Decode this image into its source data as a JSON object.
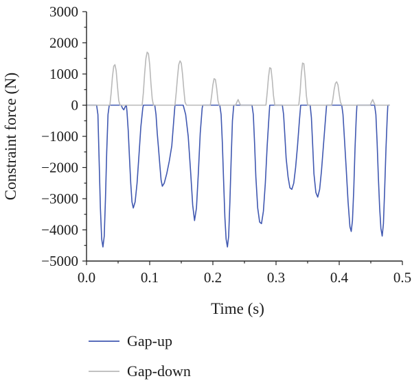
{
  "chart_data": {
    "type": "line",
    "title": "",
    "xlabel": "Time (s)",
    "ylabel": "Constraint force (N)",
    "xlim": [
      0.0,
      0.5
    ],
    "ylim": [
      -5000,
      3000
    ],
    "x_ticks": [
      0.0,
      0.1,
      0.2,
      0.3,
      0.4,
      0.5
    ],
    "x_tick_labels": [
      "0.0",
      "0.1",
      "0.2",
      "0.3",
      "0.4",
      "0.5"
    ],
    "y_ticks": [
      3000,
      2000,
      1000,
      0,
      -1000,
      -2000,
      -3000,
      -4000,
      -5000
    ],
    "y_tick_labels": [
      "3000",
      "2000",
      "1000",
      "0",
      "−1000",
      "−2000",
      "−3000",
      "−4000",
      "−5000"
    ],
    "grid": false,
    "legend_position": "bottom",
    "series": [
      {
        "name": "Gap-up",
        "color": "#3f57b0",
        "points": [
          [
            0.0,
            0
          ],
          [
            0.016,
            0
          ],
          [
            0.018,
            -300
          ],
          [
            0.02,
            -1800
          ],
          [
            0.022,
            -3300
          ],
          [
            0.024,
            -4300
          ],
          [
            0.026,
            -4550
          ],
          [
            0.028,
            -4200
          ],
          [
            0.03,
            -3000
          ],
          [
            0.032,
            -1500
          ],
          [
            0.034,
            -300
          ],
          [
            0.036,
            0
          ],
          [
            0.055,
            0
          ],
          [
            0.057,
            -100
          ],
          [
            0.059,
            -150
          ],
          [
            0.061,
            -60
          ],
          [
            0.063,
            0
          ],
          [
            0.064,
            -200
          ],
          [
            0.066,
            -800
          ],
          [
            0.068,
            -1700
          ],
          [
            0.07,
            -2500
          ],
          [
            0.072,
            -3100
          ],
          [
            0.074,
            -3300
          ],
          [
            0.077,
            -3100
          ],
          [
            0.08,
            -2500
          ],
          [
            0.083,
            -1600
          ],
          [
            0.086,
            -700
          ],
          [
            0.089,
            -100
          ],
          [
            0.09,
            0
          ],
          [
            0.108,
            0
          ],
          [
            0.11,
            -300
          ],
          [
            0.112,
            -900
          ],
          [
            0.114,
            -1400
          ],
          [
            0.116,
            -1900
          ],
          [
            0.118,
            -2400
          ],
          [
            0.12,
            -2600
          ],
          [
            0.123,
            -2500
          ],
          [
            0.127,
            -2200
          ],
          [
            0.131,
            -1800
          ],
          [
            0.135,
            -1300
          ],
          [
            0.138,
            -500
          ],
          [
            0.14,
            0
          ],
          [
            0.153,
            0
          ],
          [
            0.157,
            -300
          ],
          [
            0.161,
            -1000
          ],
          [
            0.165,
            -2200
          ],
          [
            0.168,
            -3200
          ],
          [
            0.171,
            -3700
          ],
          [
            0.174,
            -3300
          ],
          [
            0.177,
            -2200
          ],
          [
            0.18,
            -900
          ],
          [
            0.183,
            -100
          ],
          [
            0.184,
            0
          ],
          [
            0.211,
            0
          ],
          [
            0.213,
            -300
          ],
          [
            0.215,
            -1200
          ],
          [
            0.217,
            -2400
          ],
          [
            0.219,
            -3600
          ],
          [
            0.221,
            -4300
          ],
          [
            0.223,
            -4550
          ],
          [
            0.225,
            -4200
          ],
          [
            0.227,
            -3100
          ],
          [
            0.229,
            -1700
          ],
          [
            0.231,
            -500
          ],
          [
            0.233,
            0
          ],
          [
            0.262,
            0
          ],
          [
            0.264,
            -300
          ],
          [
            0.266,
            -1200
          ],
          [
            0.268,
            -2300
          ],
          [
            0.271,
            -3300
          ],
          [
            0.274,
            -3750
          ],
          [
            0.277,
            -3800
          ],
          [
            0.28,
            -3400
          ],
          [
            0.283,
            -2500
          ],
          [
            0.286,
            -1300
          ],
          [
            0.289,
            -300
          ],
          [
            0.29,
            0
          ],
          [
            0.31,
            0
          ],
          [
            0.312,
            -300
          ],
          [
            0.314,
            -1000
          ],
          [
            0.316,
            -1700
          ],
          [
            0.319,
            -2300
          ],
          [
            0.322,
            -2650
          ],
          [
            0.325,
            -2700
          ],
          [
            0.328,
            -2500
          ],
          [
            0.331,
            -2000
          ],
          [
            0.334,
            -1300
          ],
          [
            0.337,
            -500
          ],
          [
            0.339,
            0
          ],
          [
            0.354,
            0
          ],
          [
            0.356,
            -400
          ],
          [
            0.358,
            -1300
          ],
          [
            0.36,
            -2200
          ],
          [
            0.363,
            -2800
          ],
          [
            0.366,
            -2950
          ],
          [
            0.369,
            -2700
          ],
          [
            0.372,
            -2100
          ],
          [
            0.375,
            -1300
          ],
          [
            0.378,
            -500
          ],
          [
            0.38,
            0
          ],
          [
            0.404,
            0
          ],
          [
            0.406,
            -300
          ],
          [
            0.408,
            -1000
          ],
          [
            0.411,
            -2000
          ],
          [
            0.414,
            -3100
          ],
          [
            0.417,
            -3900
          ],
          [
            0.419,
            -4050
          ],
          [
            0.421,
            -3700
          ],
          [
            0.423,
            -2700
          ],
          [
            0.425,
            -1400
          ],
          [
            0.427,
            -400
          ],
          [
            0.428,
            0
          ],
          [
            0.456,
            0
          ],
          [
            0.458,
            -300
          ],
          [
            0.46,
            -1200
          ],
          [
            0.462,
            -2300
          ],
          [
            0.464,
            -3300
          ],
          [
            0.466,
            -3950
          ],
          [
            0.468,
            -4200
          ],
          [
            0.47,
            -3800
          ],
          [
            0.472,
            -2700
          ],
          [
            0.474,
            -1400
          ],
          [
            0.476,
            -400
          ],
          [
            0.477,
            0
          ],
          [
            0.48,
            0
          ]
        ]
      },
      {
        "name": "Gap-down",
        "color": "#b8b8b8",
        "points": [
          [
            0.0,
            0
          ],
          [
            0.037,
            0
          ],
          [
            0.039,
            400
          ],
          [
            0.041,
            900
          ],
          [
            0.043,
            1250
          ],
          [
            0.045,
            1300
          ],
          [
            0.047,
            1100
          ],
          [
            0.049,
            600
          ],
          [
            0.051,
            150
          ],
          [
            0.053,
            0
          ],
          [
            0.088,
            0
          ],
          [
            0.09,
            400
          ],
          [
            0.092,
            1000
          ],
          [
            0.094,
            1500
          ],
          [
            0.096,
            1700
          ],
          [
            0.098,
            1650
          ],
          [
            0.1,
            1300
          ],
          [
            0.102,
            700
          ],
          [
            0.104,
            200
          ],
          [
            0.106,
            0
          ],
          [
            0.14,
            0
          ],
          [
            0.142,
            400
          ],
          [
            0.144,
            900
          ],
          [
            0.146,
            1300
          ],
          [
            0.148,
            1420
          ],
          [
            0.15,
            1350
          ],
          [
            0.152,
            1000
          ],
          [
            0.154,
            500
          ],
          [
            0.156,
            100
          ],
          [
            0.158,
            0
          ],
          [
            0.196,
            0
          ],
          [
            0.198,
            300
          ],
          [
            0.2,
            650
          ],
          [
            0.202,
            850
          ],
          [
            0.204,
            820
          ],
          [
            0.206,
            550
          ],
          [
            0.208,
            150
          ],
          [
            0.21,
            0
          ],
          [
            0.236,
            0
          ],
          [
            0.238,
            100
          ],
          [
            0.24,
            180
          ],
          [
            0.242,
            80
          ],
          [
            0.244,
            0
          ],
          [
            0.284,
            0
          ],
          [
            0.286,
            400
          ],
          [
            0.288,
            900
          ],
          [
            0.29,
            1200
          ],
          [
            0.292,
            1180
          ],
          [
            0.294,
            800
          ],
          [
            0.296,
            300
          ],
          [
            0.298,
            0
          ],
          [
            0.336,
            0
          ],
          [
            0.338,
            400
          ],
          [
            0.34,
            1000
          ],
          [
            0.342,
            1350
          ],
          [
            0.344,
            1330
          ],
          [
            0.346,
            900
          ],
          [
            0.348,
            300
          ],
          [
            0.35,
            0
          ],
          [
            0.388,
            0
          ],
          [
            0.39,
            200
          ],
          [
            0.392,
            500
          ],
          [
            0.394,
            700
          ],
          [
            0.396,
            750
          ],
          [
            0.398,
            650
          ],
          [
            0.4,
            350
          ],
          [
            0.402,
            100
          ],
          [
            0.404,
            0
          ],
          [
            0.449,
            0
          ],
          [
            0.451,
            100
          ],
          [
            0.453,
            180
          ],
          [
            0.455,
            80
          ],
          [
            0.457,
            0
          ],
          [
            0.48,
            0
          ]
        ]
      }
    ]
  }
}
